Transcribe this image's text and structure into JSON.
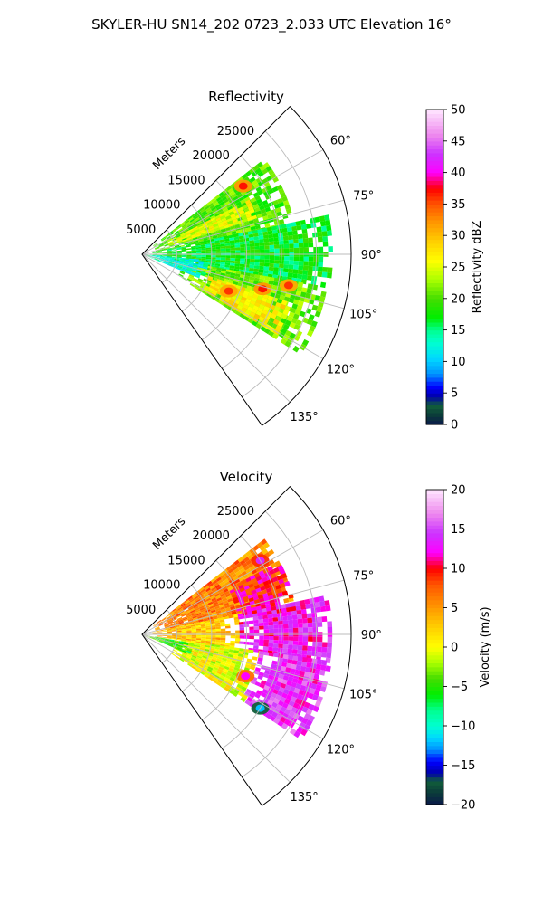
{
  "title": "SKYLER-HU  SN14_202  0723_2.033 UTC Elevation 16°",
  "chart_data": [
    {
      "type": "heatmap",
      "subtype": "polar-sector-radar-ppi",
      "title": "Reflectivity",
      "radial_label": "Meters",
      "r_ticks": [
        5000,
        10000,
        15000,
        20000,
        25000
      ],
      "r_tick_labels": [
        "5000",
        "10000",
        "15000",
        "20000",
        "25000"
      ],
      "rlim": [
        0,
        30000
      ],
      "theta_range_deg": [
        45,
        145
      ],
      "theta_ticks": [
        60,
        75,
        90,
        105,
        120,
        135
      ],
      "theta_tick_labels": [
        "60°",
        "75°",
        "90°",
        "105°",
        "120°",
        "135°"
      ],
      "grid": true,
      "colorbar": {
        "label": "Reflectivity dBZ",
        "min": 0,
        "max": 50,
        "ticks": [
          0,
          5,
          10,
          15,
          20,
          25,
          30,
          35,
          40,
          45,
          50
        ],
        "tick_labels": [
          "0",
          "5",
          "10",
          "15",
          "20",
          "25",
          "30",
          "35",
          "40",
          "45",
          "50"
        ],
        "stops": [
          {
            "v": 0,
            "c": "#0a1a4a"
          },
          {
            "v": 1.5,
            "c": "#0b3a3a"
          },
          {
            "v": 3,
            "c": "#115e3a"
          },
          {
            "v": 4.5,
            "c": "#0000aa"
          },
          {
            "v": 6,
            "c": "#0000ff"
          },
          {
            "v": 8,
            "c": "#0090ff"
          },
          {
            "v": 10.5,
            "c": "#00d8ff"
          },
          {
            "v": 13,
            "c": "#00ffd0"
          },
          {
            "v": 15,
            "c": "#00ff90"
          },
          {
            "v": 17,
            "c": "#00ee00"
          },
          {
            "v": 20,
            "c": "#44dd00"
          },
          {
            "v": 23,
            "c": "#aaff00"
          },
          {
            "v": 26,
            "c": "#ffff00"
          },
          {
            "v": 29,
            "c": "#ffd000"
          },
          {
            "v": 32,
            "c": "#ff9900"
          },
          {
            "v": 35,
            "c": "#ff5500"
          },
          {
            "v": 37.5,
            "c": "#ff0000"
          },
          {
            "v": 40,
            "c": "#ff00ff"
          },
          {
            "v": 43,
            "c": "#cc33ff"
          },
          {
            "v": 46,
            "c": "#ee88ee"
          },
          {
            "v": 50,
            "c": "#ffe6ff"
          }
        ]
      },
      "regions": [
        {
          "theta": [
            52,
            78
          ],
          "r": [
            2000,
            22000
          ],
          "value": 20
        },
        {
          "theta": [
            63,
            72
          ],
          "r": [
            4000,
            17000
          ],
          "value": 25
        },
        {
          "theta": [
            78,
            100
          ],
          "r": [
            1500,
            27000
          ],
          "value": 17
        },
        {
          "theta": [
            100,
            122
          ],
          "r": [
            6000,
            27000
          ],
          "value": 21
        },
        {
          "theta": [
            108,
            120
          ],
          "r": [
            10000,
            22000
          ],
          "value": 27
        },
        {
          "theta": [
            95,
            112
          ],
          "r": [
            500,
            9000
          ],
          "value": 13
        }
      ],
      "cores": [
        {
          "theta": 56,
          "r": 17500,
          "value": 37
        },
        {
          "theta": 113,
          "r": 13500,
          "value": 36
        },
        {
          "theta": 106,
          "r": 18000,
          "value": 37
        },
        {
          "theta": 102,
          "r": 21500,
          "value": 36
        }
      ]
    },
    {
      "type": "heatmap",
      "subtype": "polar-sector-radar-ppi",
      "title": "Velocity",
      "radial_label": "Meters",
      "r_ticks": [
        5000,
        10000,
        15000,
        20000,
        25000
      ],
      "r_tick_labels": [
        "5000",
        "10000",
        "15000",
        "20000",
        "25000"
      ],
      "rlim": [
        0,
        30000
      ],
      "theta_range_deg": [
        45,
        145
      ],
      "theta_ticks": [
        60,
        75,
        90,
        105,
        120,
        135
      ],
      "theta_tick_labels": [
        "60°",
        "75°",
        "90°",
        "105°",
        "120°",
        "135°"
      ],
      "grid": true,
      "colorbar": {
        "label": "Velocity (m/s)",
        "min": -20,
        "max": 20,
        "ticks": [
          -20,
          -15,
          -10,
          -5,
          0,
          5,
          10,
          15,
          20
        ],
        "tick_labels": [
          "−20",
          "−15",
          "−10",
          "−5",
          "0",
          "5",
          "10",
          "15",
          "20"
        ],
        "stops": [
          {
            "v": -20,
            "c": "#0a1a4a"
          },
          {
            "v": -18.5,
            "c": "#0b3a3a"
          },
          {
            "v": -17,
            "c": "#115e3a"
          },
          {
            "v": -16,
            "c": "#0000aa"
          },
          {
            "v": -14.5,
            "c": "#0000ff"
          },
          {
            "v": -13,
            "c": "#0090ff"
          },
          {
            "v": -11.5,
            "c": "#00d8ff"
          },
          {
            "v": -10,
            "c": "#00ffd0"
          },
          {
            "v": -8,
            "c": "#00ff90"
          },
          {
            "v": -6,
            "c": "#00ee00"
          },
          {
            "v": -4,
            "c": "#44dd00"
          },
          {
            "v": -2,
            "c": "#aaff00"
          },
          {
            "v": 0,
            "c": "#ffff00"
          },
          {
            "v": 2.5,
            "c": "#ffd000"
          },
          {
            "v": 5,
            "c": "#ff9900"
          },
          {
            "v": 8,
            "c": "#ff5500"
          },
          {
            "v": 10,
            "c": "#ff0000"
          },
          {
            "v": 12,
            "c": "#ff00ff"
          },
          {
            "v": 14.5,
            "c": "#cc33ff"
          },
          {
            "v": 17,
            "c": "#ee88ee"
          },
          {
            "v": 20,
            "c": "#ffe6ff"
          }
        ]
      },
      "regions": [
        {
          "theta": [
            52,
            78
          ],
          "r": [
            2000,
            22000
          ],
          "value": 6
        },
        {
          "theta": [
            62,
            80
          ],
          "r": [
            14000,
            22000
          ],
          "value": 10
        },
        {
          "theta": [
            78,
            98
          ],
          "r": [
            1500,
            14000
          ],
          "value": 3
        },
        {
          "theta": [
            78,
            98
          ],
          "r": [
            14000,
            27000
          ],
          "value": 13
        },
        {
          "theta": [
            98,
            122
          ],
          "r": [
            5000,
            17000
          ],
          "value": 0
        },
        {
          "theta": [
            98,
            122
          ],
          "r": [
            17000,
            27000
          ],
          "value": 14
        },
        {
          "theta": [
            100,
            112
          ],
          "r": [
            500,
            7000
          ],
          "value": -5
        }
      ],
      "cores": [
        {
          "theta": 112,
          "r": 16000,
          "value": 12
        },
        {
          "theta": 58,
          "r": 20000,
          "value": 14
        },
        {
          "theta": 122,
          "r": 20000,
          "value": -12
        }
      ]
    }
  ]
}
